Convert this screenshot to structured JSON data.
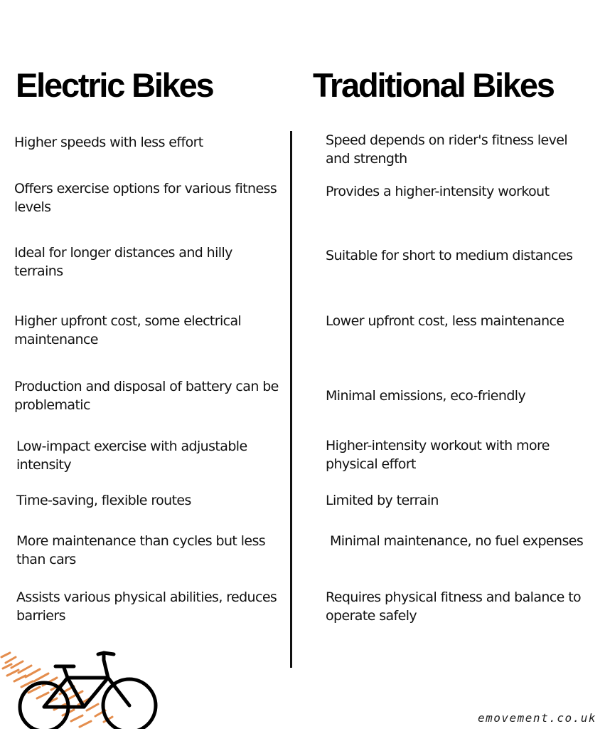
{
  "headings": {
    "electric": "Electric Bikes",
    "traditional": "Traditional Bikes"
  },
  "electric_points": [
    "Higher speeds with less effort",
    "Offers exercise options for various fitness levels",
    "Ideal for longer distances and hilly terrains",
    "Higher upfront cost, some electrical maintenance",
    "Production and disposal of battery can be problematic",
    "Low-impact exercise with adjustable intensity",
    "Time-saving,  flexible routes",
    "More maintenance than cycles but less than cars",
    "Assists various physical abilities, reduces barriers"
  ],
  "traditional_points": [
    "Speed depends on rider's fitness level and strength",
    "Provides a higher-intensity workout",
    "Suitable for short to medium distances",
    "Lower upfront cost, less maintenance",
    "Minimal emissions, eco-friendly",
    "Higher-intensity workout with more physical effort",
    "Limited by terrain",
    "Minimal maintenance, no fuel expenses",
    "Requires physical fitness and balance to operate safely"
  ],
  "footer": {
    "website": "emovement.co.uk"
  },
  "illustration": {
    "icon": "bicycle-icon",
    "track_icon": "tyre-track-icon",
    "bike_color": "#000000",
    "track_color": "#e07a2e"
  }
}
